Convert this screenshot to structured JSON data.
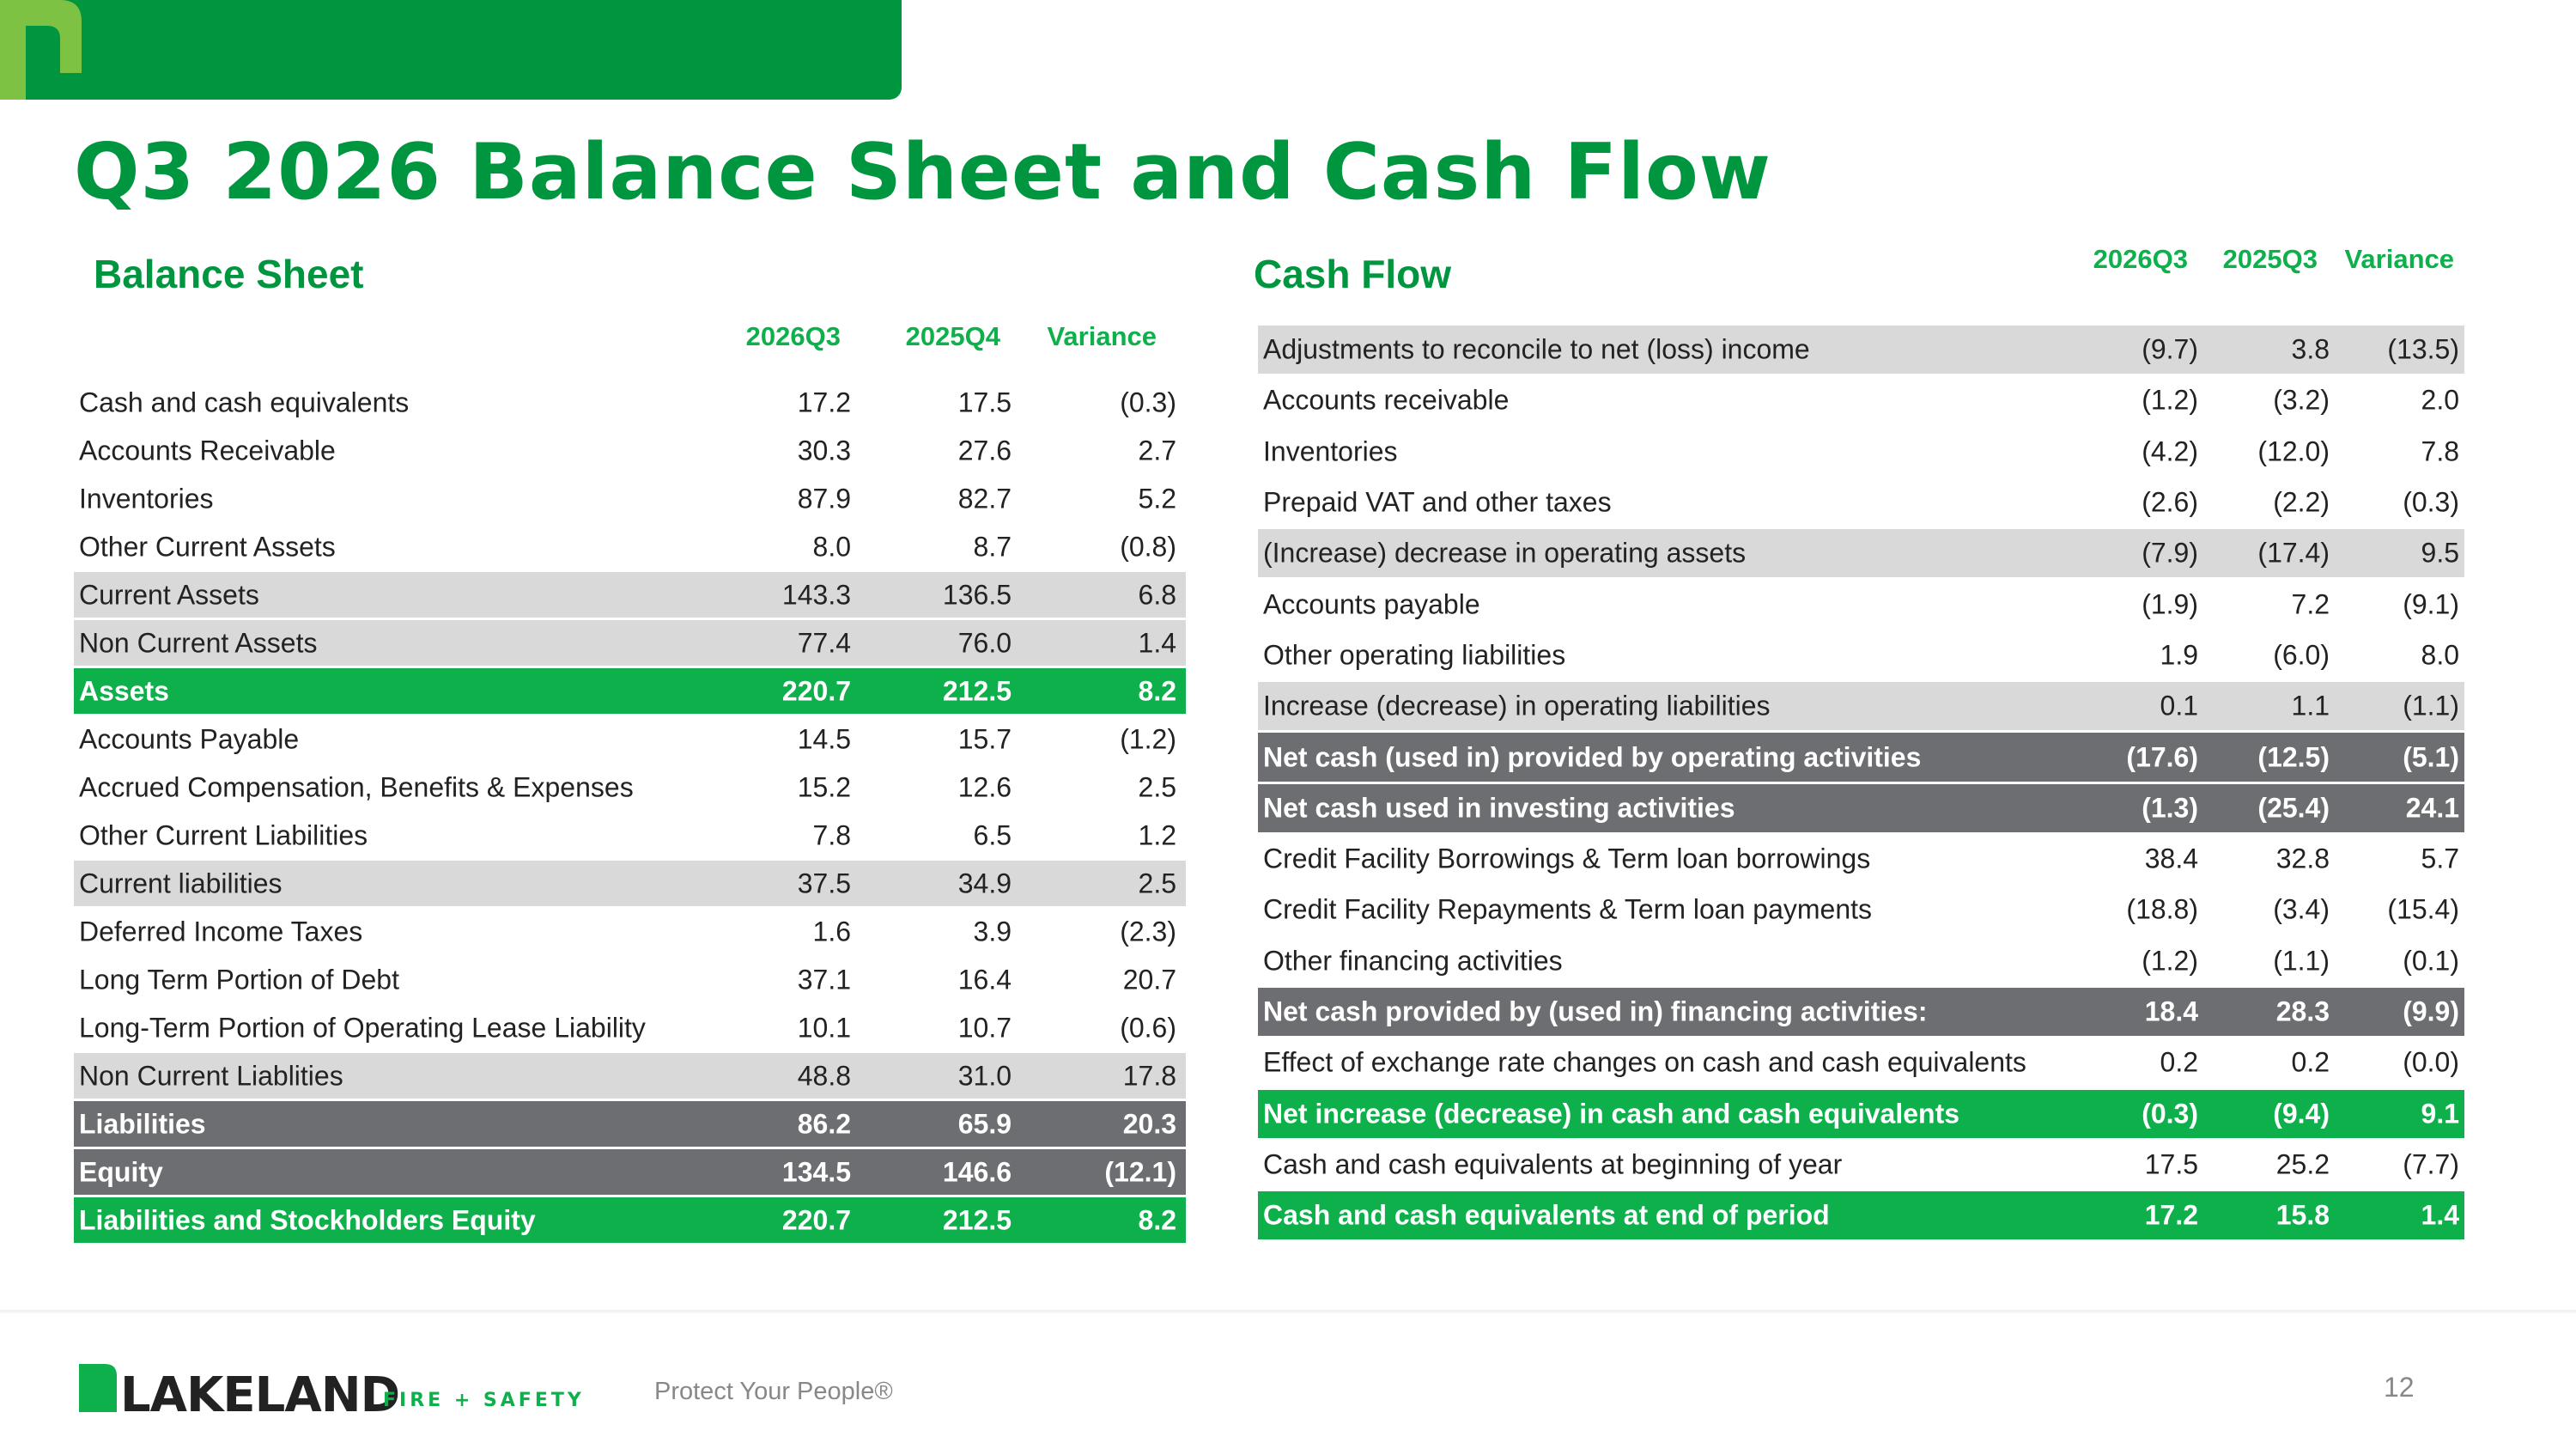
{
  "title": "Q3 2026 Balance Sheet and Cash Flow",
  "balance_sheet": {
    "heading": "Balance Sheet",
    "columns": [
      "2026Q3",
      "2025Q4",
      "Variance"
    ],
    "rows": [
      {
        "label": "Cash and cash equivalents",
        "values": [
          "17.2",
          "17.5",
          "(0.3)"
        ]
      },
      {
        "label": "Accounts Receivable",
        "values": [
          "30.3",
          "27.6",
          "2.7"
        ]
      },
      {
        "label": "Inventories",
        "values": [
          "87.9",
          "82.7",
          "5.2"
        ]
      },
      {
        "label": "Other Current Assets",
        "values": [
          "8.0",
          "8.7",
          "(0.8)"
        ]
      },
      {
        "label": "Current Assets",
        "values": [
          "143.3",
          "136.5",
          "6.8"
        ]
      },
      {
        "label": "Non Current Assets",
        "values": [
          "77.4",
          "76.0",
          "1.4"
        ]
      },
      {
        "label": "Assets",
        "values": [
          "220.7",
          "212.5",
          "8.2"
        ]
      },
      {
        "label": "Accounts Payable",
        "values": [
          "14.5",
          "15.7",
          "(1.2)"
        ]
      },
      {
        "label": "Accrued Compensation, Benefits & Expenses",
        "values": [
          "15.2",
          "12.6",
          "2.5"
        ]
      },
      {
        "label": "Other Current Liabilities",
        "values": [
          "7.8",
          "6.5",
          "1.2"
        ]
      },
      {
        "label": "Current liabilities",
        "values": [
          "37.5",
          "34.9",
          "2.5"
        ]
      },
      {
        "label": "Deferred Income Taxes",
        "values": [
          "1.6",
          "3.9",
          "(2.3)"
        ]
      },
      {
        "label": "Long Term Portion of Debt",
        "values": [
          "37.1",
          "16.4",
          "20.7"
        ]
      },
      {
        "label": "Long-Term Portion of Operating Lease Liability",
        "values": [
          "10.1",
          "10.7",
          "(0.6)"
        ]
      },
      {
        "label": "Non Current Liablities",
        "values": [
          "48.8",
          "31.0",
          "17.8"
        ]
      },
      {
        "label": "Liabilities",
        "values": [
          "86.2",
          "65.9",
          "20.3"
        ]
      },
      {
        "label": "Equity",
        "values": [
          "134.5",
          "146.6",
          "(12.1)"
        ]
      },
      {
        "label": "Liabilities and Stockholders Equity",
        "values": [
          "220.7",
          "212.5",
          "8.2"
        ]
      }
    ]
  },
  "cash_flow": {
    "heading": "Cash Flow",
    "columns": [
      "2026Q3",
      "2025Q3",
      "Variance"
    ],
    "rows": [
      {
        "label": "Adjustments to reconcile to net (loss) income",
        "values": [
          "(9.7)",
          "3.8",
          "(13.5)"
        ]
      },
      {
        "label": "Accounts receivable",
        "values": [
          "(1.2)",
          "(3.2)",
          "2.0"
        ]
      },
      {
        "label": "Inventories",
        "values": [
          "(4.2)",
          "(12.0)",
          "7.8"
        ]
      },
      {
        "label": "Prepaid VAT and other taxes",
        "values": [
          "(2.6)",
          "(2.2)",
          "(0.3)"
        ]
      },
      {
        "label": "(Increase) decrease in operating assets",
        "values": [
          "(7.9)",
          "(17.4)",
          "9.5"
        ]
      },
      {
        "label": "Accounts payable",
        "values": [
          "(1.9)",
          "7.2",
          "(9.1)"
        ]
      },
      {
        "label": "Other operating liabilities",
        "values": [
          "1.9",
          "(6.0)",
          "8.0"
        ]
      },
      {
        "label": "Increase (decrease) in operating liabilities",
        "values": [
          "0.1",
          "1.1",
          "(1.1)"
        ]
      },
      {
        "label": "Net cash (used in) provided by operating activities",
        "values": [
          "(17.6)",
          "(12.5)",
          "(5.1)"
        ]
      },
      {
        "label": "Net cash used in investing activities",
        "values": [
          "(1.3)",
          "(25.4)",
          "24.1"
        ]
      },
      {
        "label": "Credit Facility Borrowings  & Term loan borrowings",
        "values": [
          "38.4",
          "32.8",
          "5.7"
        ]
      },
      {
        "label": "Credit Facility Repayments & Term loan payments",
        "values": [
          "(18.8)",
          "(3.4)",
          "(15.4)"
        ]
      },
      {
        "label": "Other financing activities",
        "values": [
          "(1.2)",
          "(1.1)",
          "(0.1)"
        ]
      },
      {
        "label": "Net cash provided by (used in) financing activities:",
        "values": [
          "18.4",
          "28.3",
          "(9.9)"
        ]
      },
      {
        "label": "Effect of exchange rate changes on cash and cash equivalents",
        "values": [
          "0.2",
          "0.2",
          "(0.0)"
        ]
      },
      {
        "label": "Net increase (decrease) in cash and cash equivalents",
        "values": [
          "(0.3)",
          "(9.4)",
          "9.1"
        ]
      },
      {
        "label": "Cash and cash equivalents at beginning of year",
        "values": [
          "17.5",
          "25.2",
          "(7.7)"
        ]
      },
      {
        "label": "Cash and cash equivalents at end of period",
        "values": [
          "17.2",
          "15.8",
          "1.4"
        ]
      }
    ]
  },
  "footer": {
    "logo": "LAKELAND",
    "tagline": "FIRE + SAFETY",
    "slogan": "Protect Your People®",
    "page": "12"
  }
}
